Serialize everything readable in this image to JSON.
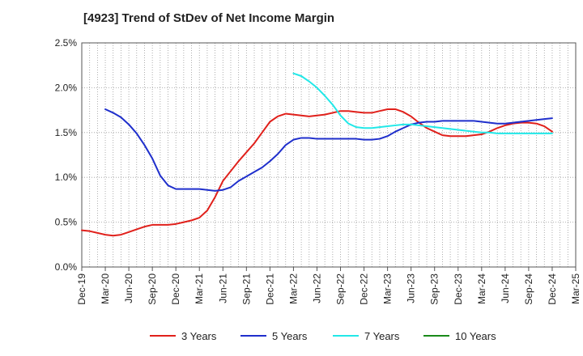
{
  "chart_data": {
    "type": "line",
    "title": "[4923]  Trend of StDev of Net Income Margin",
    "xlabel": "",
    "ylabel": "",
    "x_ticks": [
      "Dec-19",
      "Mar-20",
      "Jun-20",
      "Sep-20",
      "Dec-20",
      "Mar-21",
      "Jun-21",
      "Sep-21",
      "Dec-21",
      "Mar-22",
      "Jun-22",
      "Sep-22",
      "Dec-22",
      "Mar-23",
      "Jun-23",
      "Sep-23",
      "Dec-23",
      "Mar-24",
      "Jun-24",
      "Sep-24",
      "Dec-24",
      "Mar-25"
    ],
    "y_ticks": [
      "0.0%",
      "0.5%",
      "1.0%",
      "1.5%",
      "2.0%",
      "2.5%"
    ],
    "ylim": [
      0,
      2.5
    ],
    "grid": true,
    "legend_position": "bottom",
    "series": [
      {
        "name": "3 Years",
        "color": "#e0201b",
        "x": [
          "Dec-19",
          "Jan-20",
          "Feb-20",
          "Mar-20",
          "Apr-20",
          "May-20",
          "Jun-20",
          "Jul-20",
          "Aug-20",
          "Sep-20",
          "Oct-20",
          "Nov-20",
          "Dec-20",
          "Jan-21",
          "Feb-21",
          "Mar-21",
          "Apr-21",
          "May-21",
          "Jun-21",
          "Jul-21",
          "Aug-21",
          "Sep-21",
          "Oct-21",
          "Nov-21",
          "Dec-21",
          "Jan-22",
          "Feb-22",
          "Mar-22",
          "Apr-22",
          "May-22",
          "Jun-22",
          "Jul-22",
          "Aug-22",
          "Sep-22",
          "Oct-22",
          "Nov-22",
          "Dec-22",
          "Jan-23",
          "Feb-23",
          "Mar-23",
          "Apr-23",
          "May-23",
          "Jun-23",
          "Jul-23",
          "Aug-23",
          "Sep-23",
          "Oct-23",
          "Nov-23",
          "Dec-23",
          "Jan-24",
          "Feb-24",
          "Mar-24",
          "Apr-24",
          "May-24",
          "Jun-24",
          "Jul-24",
          "Aug-24",
          "Sep-24",
          "Oct-24",
          "Nov-24",
          "Dec-24"
        ],
        "values": [
          0.41,
          0.4,
          0.38,
          0.36,
          0.35,
          0.36,
          0.39,
          0.42,
          0.45,
          0.47,
          0.47,
          0.47,
          0.48,
          0.5,
          0.52,
          0.55,
          0.63,
          0.78,
          0.96,
          1.07,
          1.18,
          1.28,
          1.38,
          1.5,
          1.62,
          1.68,
          1.71,
          1.7,
          1.69,
          1.68,
          1.69,
          1.7,
          1.72,
          1.74,
          1.74,
          1.73,
          1.72,
          1.72,
          1.74,
          1.76,
          1.76,
          1.73,
          1.68,
          1.61,
          1.55,
          1.51,
          1.47,
          1.46,
          1.46,
          1.46,
          1.47,
          1.48,
          1.51,
          1.55,
          1.58,
          1.6,
          1.61,
          1.61,
          1.6,
          1.57,
          1.51
        ]
      },
      {
        "name": "5 Years",
        "color": "#1f2fcc",
        "x": [
          "Mar-20",
          "Apr-20",
          "May-20",
          "Jun-20",
          "Jul-20",
          "Aug-20",
          "Sep-20",
          "Oct-20",
          "Nov-20",
          "Dec-20",
          "Jan-21",
          "Feb-21",
          "Mar-21",
          "Apr-21",
          "May-21",
          "Jun-21",
          "Jul-21",
          "Aug-21",
          "Sep-21",
          "Oct-21",
          "Nov-21",
          "Dec-21",
          "Jan-22",
          "Feb-22",
          "Mar-22",
          "Apr-22",
          "May-22",
          "Jun-22",
          "Jul-22",
          "Aug-22",
          "Sep-22",
          "Oct-22",
          "Nov-22",
          "Dec-22",
          "Jan-23",
          "Feb-23",
          "Mar-23",
          "Apr-23",
          "May-23",
          "Jun-23",
          "Jul-23",
          "Aug-23",
          "Sep-23",
          "Oct-23",
          "Nov-23",
          "Dec-23",
          "Jan-24",
          "Feb-24",
          "Mar-24",
          "Apr-24",
          "May-24",
          "Jun-24",
          "Jul-24",
          "Aug-24",
          "Sep-24",
          "Oct-24",
          "Nov-24",
          "Dec-24"
        ],
        "values": [
          1.76,
          1.72,
          1.67,
          1.59,
          1.49,
          1.36,
          1.21,
          1.02,
          0.91,
          0.87,
          0.87,
          0.87,
          0.87,
          0.86,
          0.85,
          0.86,
          0.89,
          0.96,
          1.01,
          1.06,
          1.11,
          1.18,
          1.26,
          1.36,
          1.42,
          1.44,
          1.44,
          1.43,
          1.43,
          1.43,
          1.43,
          1.43,
          1.43,
          1.42,
          1.42,
          1.43,
          1.46,
          1.51,
          1.55,
          1.59,
          1.61,
          1.62,
          1.62,
          1.63,
          1.63,
          1.63,
          1.63,
          1.63,
          1.62,
          1.61,
          1.6,
          1.6,
          1.61,
          1.62,
          1.63,
          1.64,
          1.65,
          1.66
        ]
      },
      {
        "name": "7 Years",
        "color": "#22e8e8",
        "x": [
          "Mar-22",
          "Apr-22",
          "May-22",
          "Jun-22",
          "Jul-22",
          "Aug-22",
          "Sep-22",
          "Oct-22",
          "Nov-22",
          "Dec-22",
          "Jan-23",
          "Feb-23",
          "Mar-23",
          "Apr-23",
          "May-23",
          "Jun-23",
          "Jul-23",
          "Aug-23",
          "Sep-23",
          "Oct-23",
          "Nov-23",
          "Dec-23",
          "Jan-24",
          "Feb-24",
          "Mar-24",
          "Apr-24",
          "May-24",
          "Jun-24",
          "Jul-24",
          "Aug-24",
          "Sep-24",
          "Oct-24",
          "Nov-24",
          "Dec-24"
        ],
        "values": [
          2.16,
          2.13,
          2.07,
          2.0,
          1.91,
          1.81,
          1.69,
          1.6,
          1.56,
          1.55,
          1.55,
          1.56,
          1.57,
          1.58,
          1.59,
          1.59,
          1.58,
          1.57,
          1.56,
          1.55,
          1.54,
          1.53,
          1.52,
          1.51,
          1.5,
          1.5,
          1.49,
          1.49,
          1.49,
          1.49,
          1.49,
          1.49,
          1.49,
          1.49
        ]
      },
      {
        "name": "10 Years",
        "color": "#1a8a1a",
        "x": [],
        "values": []
      }
    ]
  }
}
